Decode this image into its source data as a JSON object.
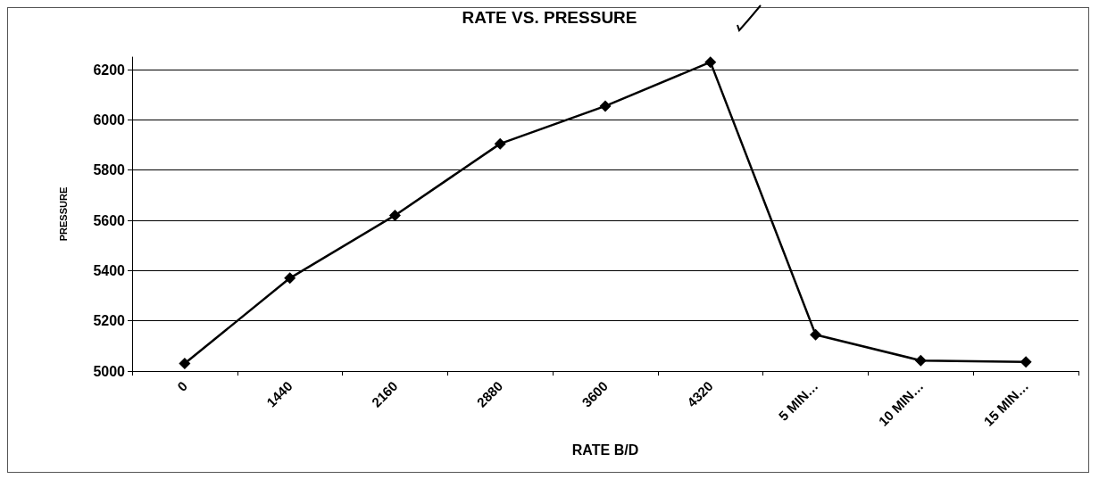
{
  "chart_data": {
    "type": "line",
    "title": "RATE VS. PRESSURE",
    "xlabel": "RATE B/D",
    "ylabel": "PRESSURE",
    "categories": [
      "0",
      "1440",
      "2160",
      "2880",
      "3600",
      "4320",
      "5 MIN…",
      "10 MIN…",
      "15 MIN…"
    ],
    "series": [
      {
        "color": "#000000",
        "values": [
          5030,
          5370,
          5620,
          5905,
          6055,
          6230,
          5145,
          5042,
          5036
        ]
      }
    ],
    "ylim": [
      5000,
      6250
    ],
    "yticks": [
      5000,
      5200,
      5400,
      5600,
      5800,
      6000,
      6200
    ],
    "grid": "y",
    "marker": "diamond",
    "line_style": "solid"
  }
}
